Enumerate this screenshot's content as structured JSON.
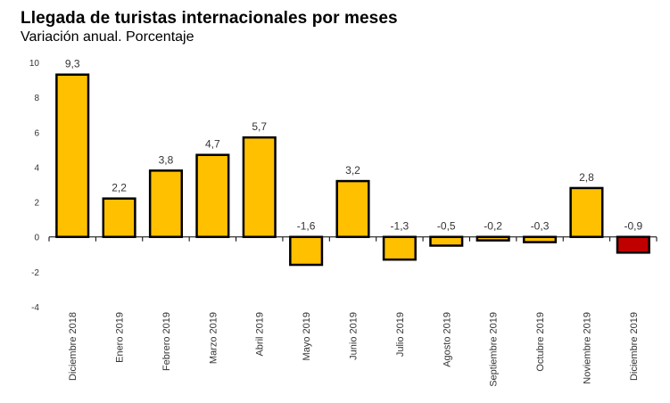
{
  "chart_data": {
    "type": "bar",
    "title": "Llegada de turistas internacionales por meses",
    "subtitle": "Variación anual. Porcentaje",
    "xlabel": "",
    "ylabel": "",
    "ylim": [
      -4,
      10
    ],
    "yticks": [
      10,
      8,
      6,
      4,
      2,
      0,
      -2,
      -4
    ],
    "grid": false,
    "categories": [
      "Diciembre 2018",
      "Enero 2019",
      "Febrero 2019",
      "Marzo 2019",
      "Abril 2019",
      "Mayo 2019",
      "Junio 2019",
      "Julio 2019",
      "Agosto 2019",
      "Septiembre 2019",
      "Octubre 2019",
      "Noviembre 2019",
      "Diciembre 2019"
    ],
    "values": [
      9.3,
      2.2,
      3.8,
      4.7,
      5.7,
      -1.6,
      3.2,
      -1.3,
      -0.5,
      -0.2,
      -0.3,
      2.8,
      -0.9
    ],
    "data_labels": [
      "9,3",
      "2,2",
      "3,8",
      "4,7",
      "5,7",
      "-1,6",
      "3,2",
      "-1,3",
      "-0,5",
      "-0,2",
      "-0,3",
      "2,8",
      "-0,9"
    ],
    "colors": {
      "default": "#FFC000",
      "highlight": "#C00000",
      "outline": "#000000"
    },
    "highlight_index": 12
  }
}
